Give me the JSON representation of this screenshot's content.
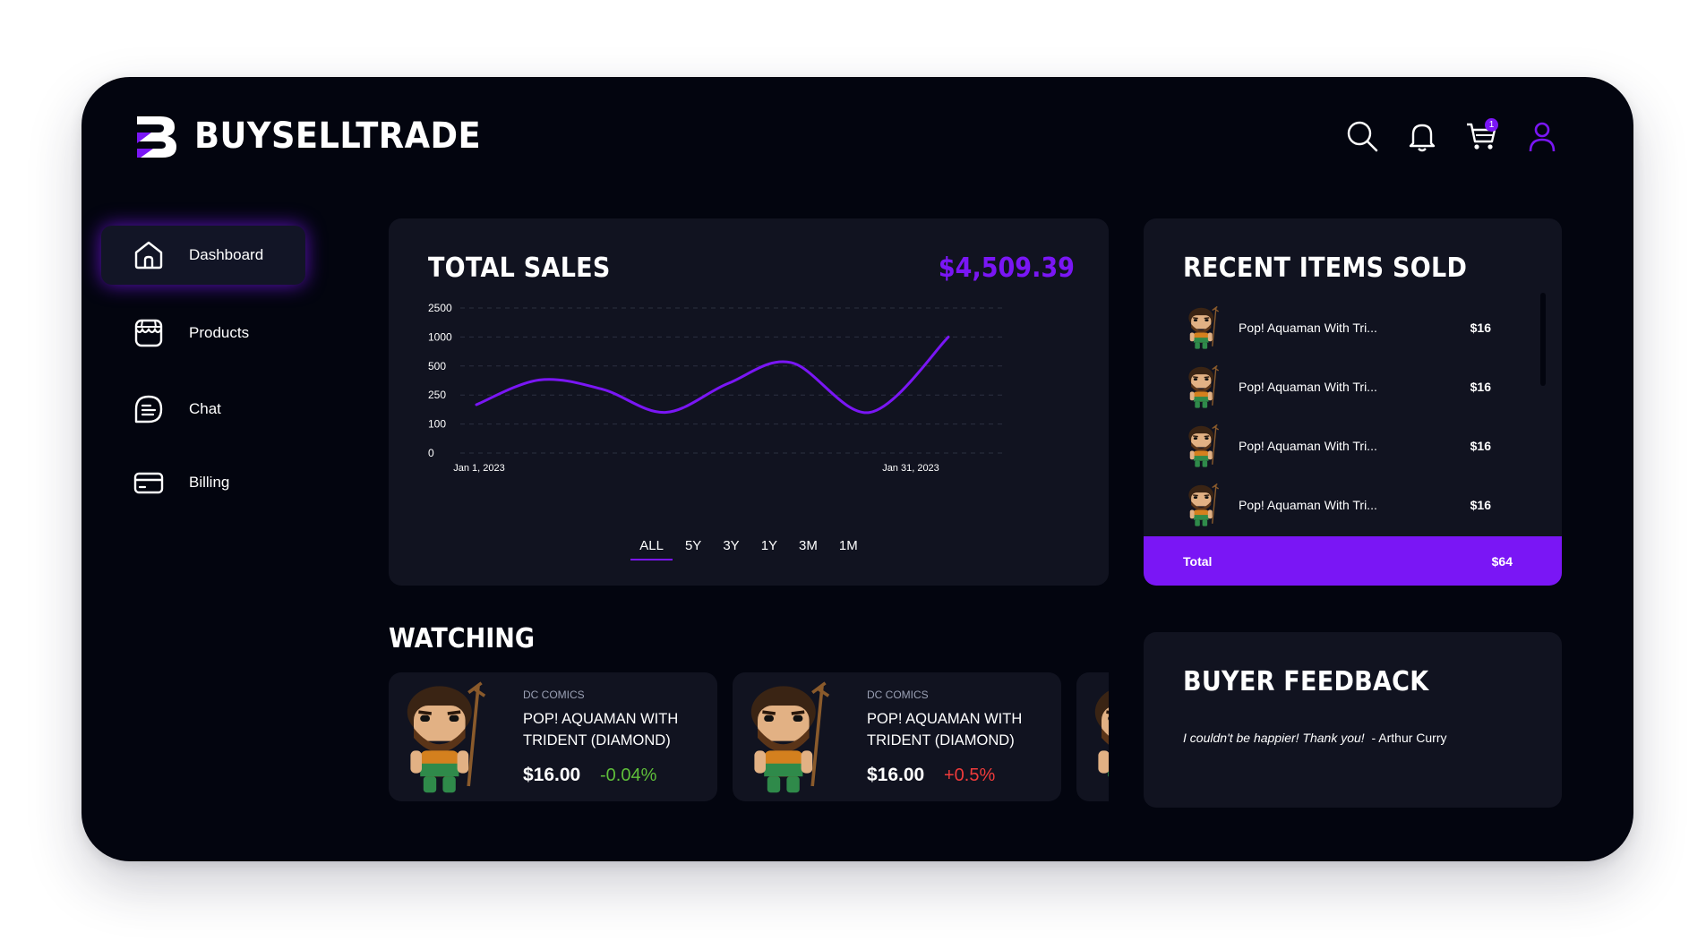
{
  "brand": {
    "name": "BUYSELLTRADE"
  },
  "header": {
    "icons": [
      "search-icon",
      "bell-icon",
      "cart-icon",
      "user-icon"
    ],
    "cart_count": "1"
  },
  "sidebar": {
    "items": [
      {
        "label": "Dashboard",
        "icon": "home-icon",
        "active": true
      },
      {
        "label": "Products",
        "icon": "store-icon",
        "active": false
      },
      {
        "label": "Chat",
        "icon": "chat-icon",
        "active": false
      },
      {
        "label": "Billing",
        "icon": "credit-card-icon",
        "active": false
      }
    ]
  },
  "sales": {
    "title": "TOTAL SALES",
    "total": "$4,509.39",
    "ranges": [
      "ALL",
      "5Y",
      "3Y",
      "1Y",
      "3M",
      "1M"
    ],
    "active_range": "ALL"
  },
  "chart_data": {
    "type": "line",
    "title": "TOTAL SALES",
    "y_ticks": [
      "2500",
      "1000",
      "500",
      "250",
      "100",
      "0"
    ],
    "x_labels": [
      "Jan 1, 2023",
      "Jan 31, 2023"
    ],
    "grid": true,
    "series": [
      {
        "color": "#7a16f5",
        "x": [
          "Jan 1, 2023",
          "Jan 5, 2023",
          "Jan 9, 2023",
          "Jan 13, 2023",
          "Jan 17, 2023",
          "Jan 21, 2023",
          "Jan 26, 2023",
          "Jan 31, 2023"
        ],
        "values": [
          200,
          380,
          300,
          160,
          350,
          560,
          160,
          1000
        ]
      }
    ]
  },
  "recent": {
    "title": "RECENT ITEMS SOLD",
    "items": [
      {
        "name": "Pop! Aquaman With Tri...",
        "price": "$16"
      },
      {
        "name": "Pop! Aquaman With Tri...",
        "price": "$16"
      },
      {
        "name": "Pop! Aquaman With Tri...",
        "price": "$16"
      },
      {
        "name": "Pop! Aquaman With Tri...",
        "price": "$16"
      }
    ],
    "total_label": "Total",
    "total_value": "$64"
  },
  "watching": {
    "title": "WATCHING",
    "items": [
      {
        "brand": "DC COMICS",
        "name": "POP! AQUAMAN WITH TRIDENT (DIAMOND)",
        "price": "$16.00",
        "change": "-0.04%",
        "change_color": "#5fbf3a"
      },
      {
        "brand": "DC COMICS",
        "name": "POP! AQUAMAN WITH TRIDENT (DIAMOND)",
        "price": "$16.00",
        "change": "+0.5%",
        "change_color": "#f03b3b"
      }
    ]
  },
  "feedback": {
    "title": "BUYER FEEDBACK",
    "quote": "I couldn't be happier! Thank you!",
    "author": "- Arthur Curry"
  },
  "colors": {
    "accent": "#7a16f5",
    "background": "#03050f",
    "card": "#111320"
  }
}
